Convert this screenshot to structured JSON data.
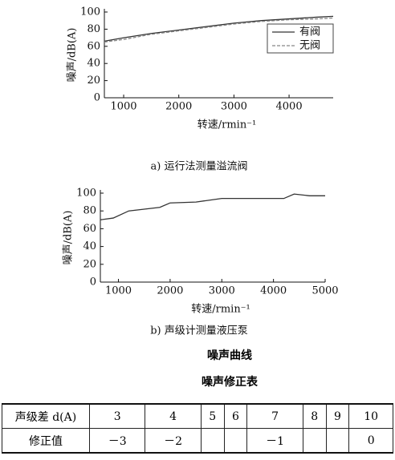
{
  "chart_data": [
    {
      "type": "line",
      "caption": "a) 运行法测量溢流阀",
      "xlabel": "转速/rmin⁻¹",
      "ylabel": "噪声/dB(A)",
      "x": [
        650,
        1000,
        1500,
        2000,
        2500,
        3000,
        3500,
        4000,
        4500,
        4800
      ],
      "series": [
        {
          "name": "有阀",
          "color": "#333333",
          "linestyle": "solid",
          "values": [
            66,
            70,
            75,
            79,
            83,
            87,
            90,
            92,
            94,
            95
          ]
        },
        {
          "name": "无阀",
          "color": "#888888",
          "linestyle": "dashed",
          "values": [
            65,
            68,
            74,
            78,
            82,
            86,
            89,
            91,
            92,
            93
          ]
        }
      ],
      "xlim": [
        650,
        4800
      ],
      "xticks": [
        1000,
        2000,
        3000,
        4000
      ],
      "ylim": [
        0,
        100
      ],
      "yticks": [
        0,
        20,
        40,
        60,
        80,
        100
      ],
      "legend": "upper right"
    },
    {
      "type": "line",
      "caption": "b) 声级计测量液压泵",
      "xlabel": "转速/rmin⁻¹",
      "ylabel": "噪声/dB(A)",
      "x": [
        650,
        900,
        1200,
        1500,
        1800,
        2000,
        2500,
        3000,
        3500,
        4000,
        4200,
        4400,
        4700,
        5000
      ],
      "series": [
        {
          "color": "#333333",
          "linestyle": "solid",
          "values": [
            70,
            72,
            80,
            82,
            84,
            89,
            90,
            94,
            94,
            94,
            94,
            99,
            97,
            97
          ]
        }
      ],
      "xlim": [
        650,
        5000
      ],
      "xticks": [
        1000,
        2000,
        3000,
        4000,
        5000
      ],
      "ylim": [
        0,
        100
      ],
      "yticks": [
        0,
        20,
        40,
        60,
        80,
        100
      ]
    }
  ],
  "headings": [
    "噪声曲线",
    "噪声修正表"
  ],
  "table": {
    "rows": [
      [
        "声级差 d(A)",
        "3",
        "4",
        "5",
        "6",
        "7",
        "8",
        "9",
        "10"
      ],
      [
        "修正值",
        "－3",
        "－2",
        null,
        null,
        "－1",
        null,
        null,
        "0"
      ]
    ]
  }
}
